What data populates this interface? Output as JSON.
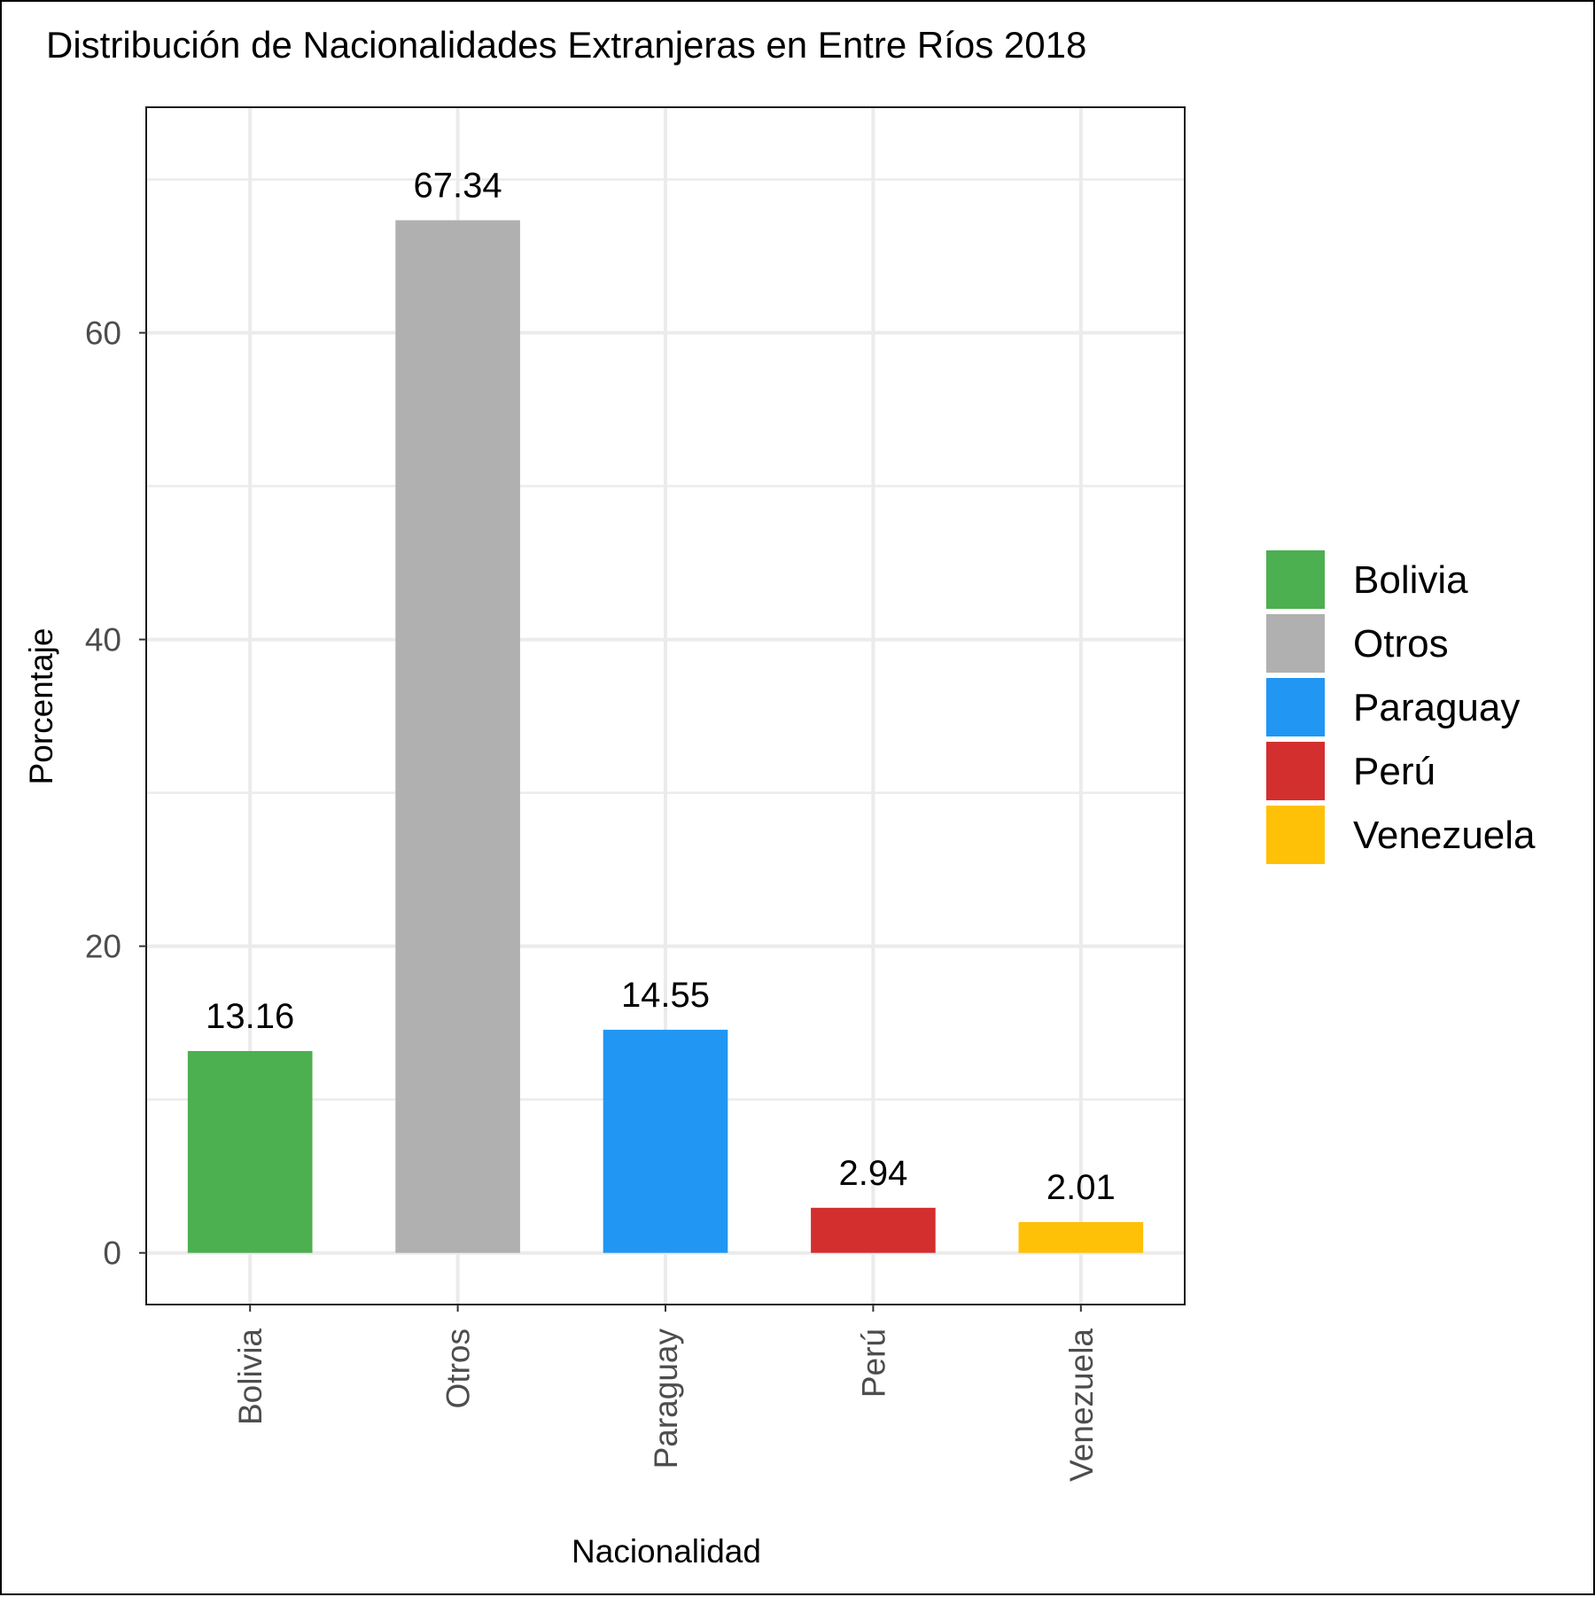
{
  "chart_data": {
    "type": "bar",
    "title": "Distribución de Nacionalidades Extranjeras en Entre Ríos 2018",
    "xlabel": "Nacionalidad",
    "ylabel": "Porcentaje",
    "categories": [
      "Bolivia",
      "Otros",
      "Paraguay",
      "Perú",
      "Venezuela"
    ],
    "values": [
      13.16,
      67.34,
      14.55,
      2.94,
      2.01
    ],
    "value_labels": [
      "13.16",
      "67.34",
      "14.55",
      "2.94",
      "2.01"
    ],
    "colors": [
      "#4caf50",
      "#b0b0b0",
      "#2196f3",
      "#d32f2f",
      "#ffc107"
    ],
    "ylim": [
      -3.37,
      74.71
    ],
    "yticks": [
      0,
      20,
      40,
      60
    ],
    "ytick_labels": [
      "0",
      "20",
      "40",
      "60"
    ],
    "grid": true,
    "legend": {
      "position": "right",
      "entries": [
        "Bolivia",
        "Otros",
        "Paraguay",
        "Perú",
        "Venezuela"
      ]
    }
  }
}
